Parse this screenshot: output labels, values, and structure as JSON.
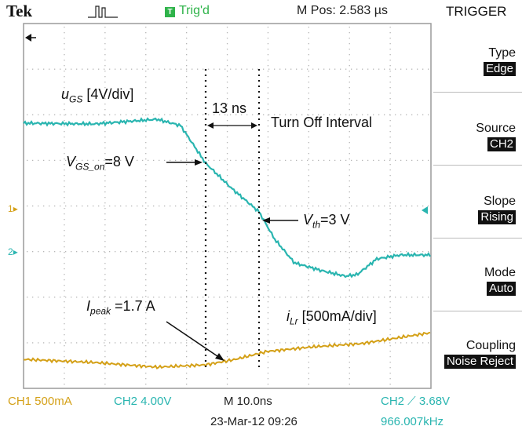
{
  "header": {
    "brand": "Tek",
    "trigger_icon": "T",
    "trigger_state": "Trig'd",
    "position": "M Pos: 2.583 µs"
  },
  "menu": {
    "title": "TRIGGER",
    "items": [
      {
        "label": "Type",
        "value": "Edge"
      },
      {
        "label": "Source",
        "value": "CH2"
      },
      {
        "label": "Slope",
        "value": "Rising"
      },
      {
        "label": "Mode",
        "value": "Auto"
      },
      {
        "label": "Coupling",
        "value": "Noise Reject"
      }
    ]
  },
  "status": {
    "ch1": "CH1  500mA",
    "ch2": "CH2  4.00V",
    "timebase": "M 10.0ns",
    "datetime": "23-Mar-12 09:26",
    "trigger_level": "CH2 ⟋ 3.68V",
    "frequency": "966.007kHz"
  },
  "markers": {
    "ch1": "1",
    "ch2": "2"
  },
  "annotations": {
    "ugs_main": "u",
    "ugs_sub": "GS",
    "ugs_scale": " [4V/div]",
    "interval": "13 ns",
    "turn_off": "Turn Off Interval",
    "vgs_main": "V",
    "vgs_sub": "GS_on",
    "vgs_val": "=8 V",
    "vth_main": "V",
    "vth_sub": "th",
    "vth_val": "=3 V",
    "ipeak_main": "I",
    "ipeak_sub": "peak",
    "ipeak_val": " =1.7 A",
    "ilr_main": "i",
    "ilr_sub": "Lr",
    "ilr_scale": " [500mA/div]"
  },
  "colors": {
    "ch1": "#d4a017",
    "ch2": "#2ab5b0",
    "trig": "#2fb34a"
  }
}
